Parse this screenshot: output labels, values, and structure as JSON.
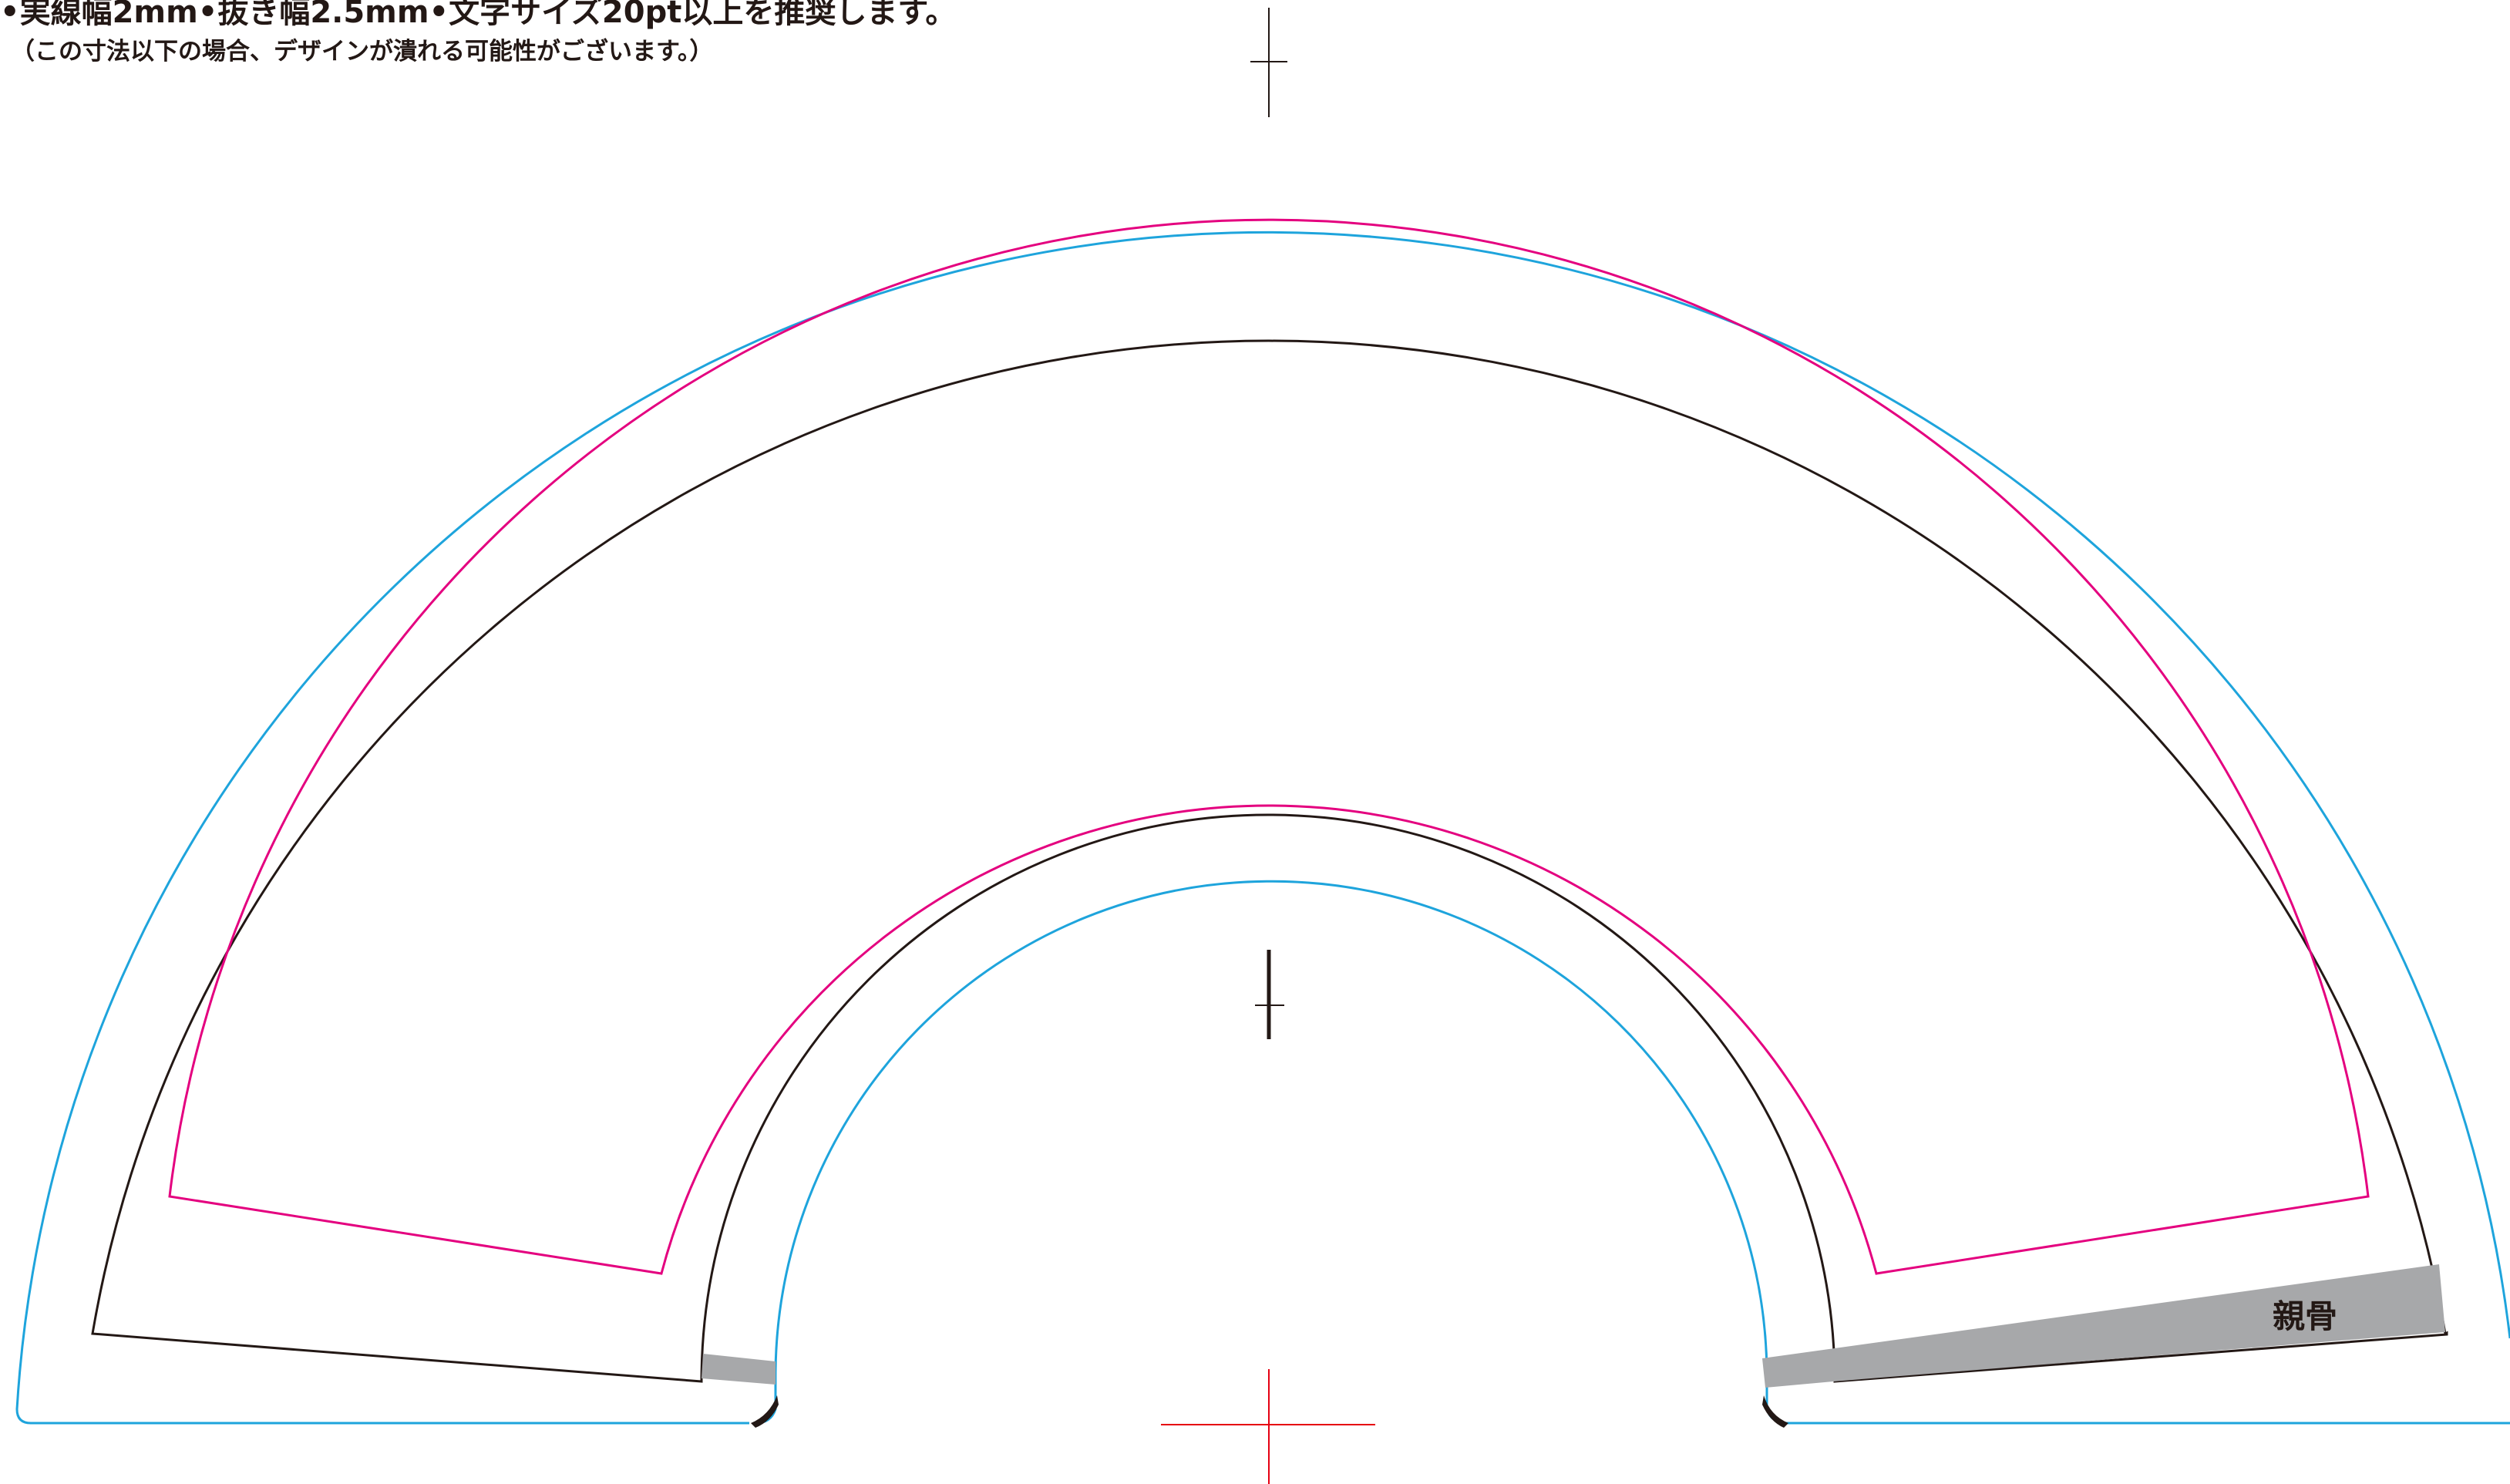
{
  "notes": {
    "line1": "•実線幅2mm•抜き幅2.5mm•文字サイズ20pt以上を推奨します。",
    "line2": "（この寸法以下の場合、デザインが潰れる可能性がございます。）"
  },
  "template": {
    "rib_label": "親骨",
    "bottom_text_partial": "",
    "colors": {
      "bleed_line": "#1ea4dc",
      "trim_line": "#231815",
      "safe_line": "#e4007f",
      "rib_fill": "#a7a8aa",
      "center_mark": "#e60012"
    }
  }
}
